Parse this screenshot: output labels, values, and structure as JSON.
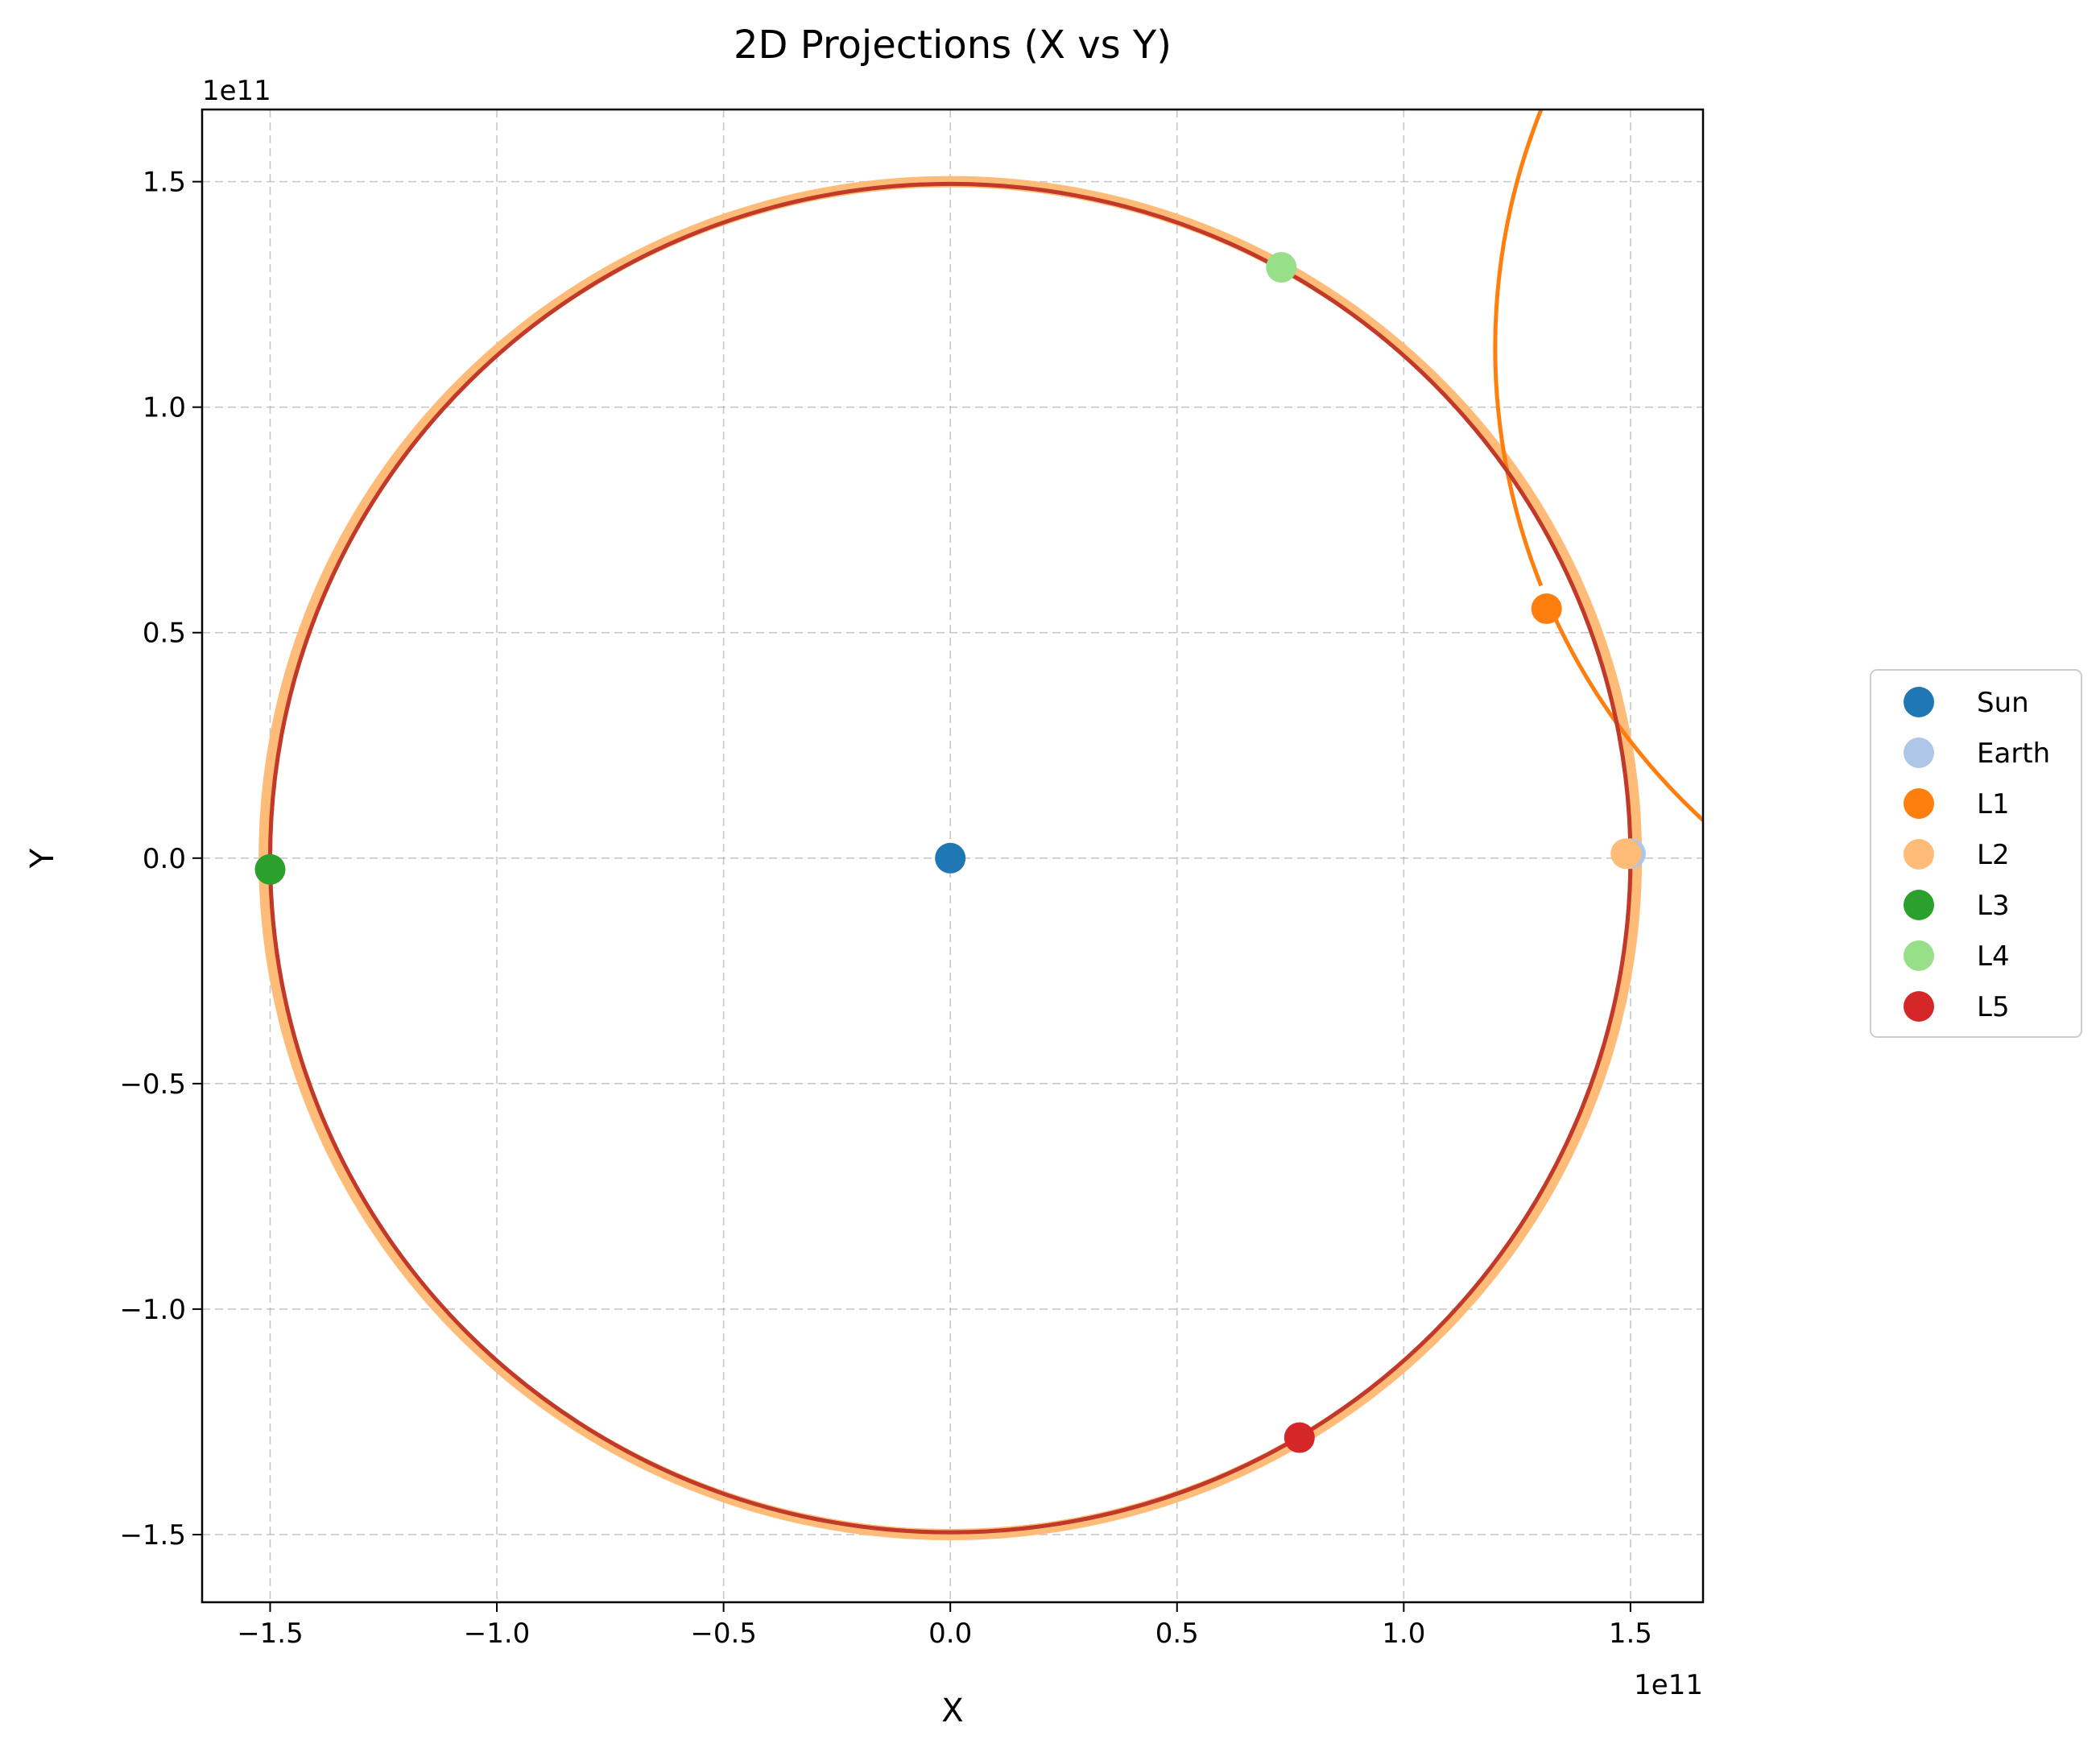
{
  "chart_data": {
    "type": "scatter",
    "title": "2D Projections (X vs Y)",
    "xlabel": "X",
    "ylabel": "Y",
    "x_offset_text": "1e11",
    "y_offset_text": "1e11",
    "xlim": [
      -1.65,
      1.66
    ],
    "ylim": [
      -1.65,
      1.66
    ],
    "xticks": [
      -1.5,
      -1.0,
      -0.5,
      0.0,
      0.5,
      1.0,
      1.5
    ],
    "yticks": [
      -1.5,
      -1.0,
      -0.5,
      0.0,
      0.5,
      1.0,
      1.5
    ],
    "xtick_labels": [
      "−1.5",
      "−1.0",
      "−0.5",
      "0.0",
      "0.5",
      "1.0",
      "1.5"
    ],
    "ytick_labels": [
      "−1.5",
      "−1.0",
      "−0.5",
      "0.0",
      "0.5",
      "1.0",
      "1.5"
    ],
    "grid": true,
    "legend_position": "right",
    "series": [
      {
        "name": "Sun",
        "color": "#1f77b4",
        "point": [
          0.0,
          0.0
        ]
      },
      {
        "name": "Earth",
        "color": "#aec7e8",
        "point": [
          1.5,
          0.01
        ]
      },
      {
        "name": "L1",
        "color": "#ff7f0e",
        "point": [
          1.315,
          0.553
        ]
      },
      {
        "name": "L2",
        "color": "#ffbb78",
        "point": [
          1.49,
          0.01
        ]
      },
      {
        "name": "L3",
        "color": "#2ca02c",
        "point": [
          -1.5,
          -0.025
        ]
      },
      {
        "name": "L4",
        "color": "#98df8a",
        "point": [
          0.73,
          1.31
        ]
      },
      {
        "name": "L5",
        "color": "#d62728",
        "point": [
          0.77,
          -1.285
        ]
      }
    ],
    "trajectories": [
      {
        "series": "L2",
        "color": "#ffbb78",
        "cx": 0.0,
        "cy": 0.0,
        "rx": 1.513,
        "ry": 1.5
      },
      {
        "series": "L1",
        "color": "#ff7f0e",
        "cx": -0.02,
        "cy": 0.05,
        "rx": 1.435,
        "ry": 1.43,
        "start_angle_deg": 22.8
      },
      {
        "series": "L1",
        "color": "#ff7f0e",
        "cx": 0.0,
        "cy": 0.0,
        "rx": 1.5,
        "ry": 1.495
      },
      {
        "series": "L5",
        "color": "#c0392b",
        "cx": 0.0,
        "cy": 0.0,
        "rx": 1.5,
        "ry": 1.495
      }
    ]
  }
}
